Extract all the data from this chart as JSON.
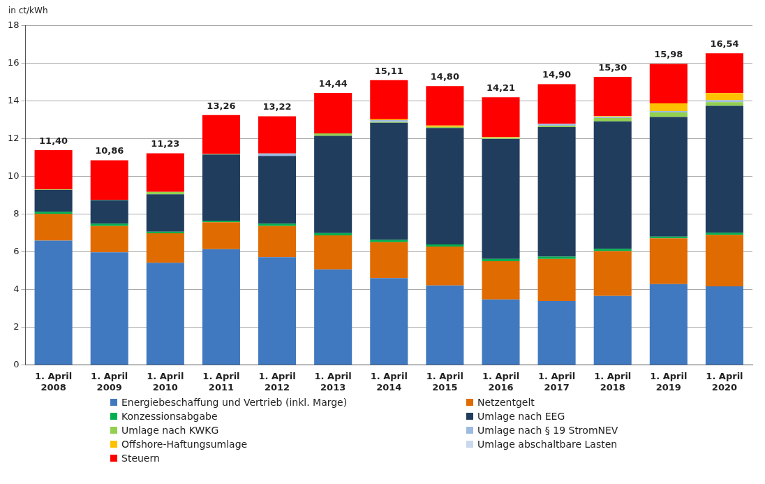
{
  "chart_data": {
    "type": "bar",
    "stacked": true,
    "ylabel": "in ct/kWh",
    "categories": [
      "1. April 2008",
      "1. April 2009",
      "1. April 2010",
      "1. April 2011",
      "1. April 2012",
      "1. April 2013",
      "1. April 2014",
      "1. April 2015",
      "1. April 2016",
      "1. April 2017",
      "1. April 2018",
      "1. April 2019",
      "1. April 2020"
    ],
    "series": [
      {
        "name": "Energiebeschaffung und Vertrieb (inkl. Marge)",
        "color": "#4079bf",
        "values": [
          6.6,
          5.98,
          5.43,
          6.15,
          5.72,
          5.08,
          4.61,
          4.22,
          3.48,
          3.4,
          3.67,
          4.3,
          4.18
        ]
      },
      {
        "name": "Netzentgelt",
        "color": "#e06b00",
        "values": [
          1.42,
          1.4,
          1.56,
          1.43,
          1.66,
          1.8,
          1.91,
          2.07,
          2.03,
          2.23,
          2.38,
          2.42,
          2.73
        ]
      },
      {
        "name": "Konzessionsabgabe",
        "color": "#00b050",
        "values": [
          0.11,
          0.12,
          0.09,
          0.08,
          0.12,
          0.12,
          0.12,
          0.11,
          0.12,
          0.12,
          0.12,
          0.1,
          0.11
        ]
      },
      {
        "name": "Umlage nach EEG",
        "color": "#203d5e",
        "values": [
          1.16,
          1.25,
          1.98,
          3.51,
          3.59,
          5.16,
          6.21,
          6.18,
          6.36,
          6.87,
          6.76,
          6.34,
          6.73
        ]
      },
      {
        "name": "Umlage nach KWKG",
        "color": "#92d050",
        "values": [
          0.03,
          0.02,
          0.13,
          0.03,
          null,
          0.13,
          0.05,
          0.05,
          0.03,
          0.08,
          0.17,
          0.24,
          0.2
        ]
      },
      {
        "name": "Umlage nach § 19 StromNEV",
        "color": "#9dbbe0",
        "values": [
          0,
          0,
          0,
          0,
          0.13,
          0,
          0.09,
          0,
          0.04,
          0.1,
          0.07,
          0.07,
          0.1
        ]
      },
      {
        "name": "Offshore-Haftungsumlage",
        "color": "#ffc000",
        "values": [
          0,
          0,
          0,
          0,
          0,
          0,
          0.05,
          0.08,
          0.04,
          0,
          0.04,
          0.41,
          0.38
        ]
      },
      {
        "name": "Umlage abschaltbare Lasten",
        "color": "#c9d8ec",
        "values": [
          0,
          0,
          0,
          0,
          0,
          0,
          0,
          0,
          0,
          0.01,
          null,
          null,
          0
        ]
      },
      {
        "name": "Steuern",
        "color": "#ff0000",
        "values": [
          2.08,
          2.09,
          2.04,
          2.06,
          1.98,
          2.15,
          2.07,
          2.09,
          2.11,
          2.09,
          2.08,
          2.09,
          2.11
        ]
      }
    ],
    "totals": [
      "11,40",
      "10,86",
      "11,23",
      "13,26",
      "13,22",
      "14,44",
      "15,11",
      "14,80",
      "14,21",
      "14,90",
      "15,30",
      "15,98",
      "16,54"
    ],
    "ylim": [
      0,
      18
    ],
    "yticks": [
      0,
      2,
      4,
      6,
      8,
      10,
      12,
      14,
      16,
      18
    ],
    "grid": "y",
    "legend": "bottom"
  }
}
